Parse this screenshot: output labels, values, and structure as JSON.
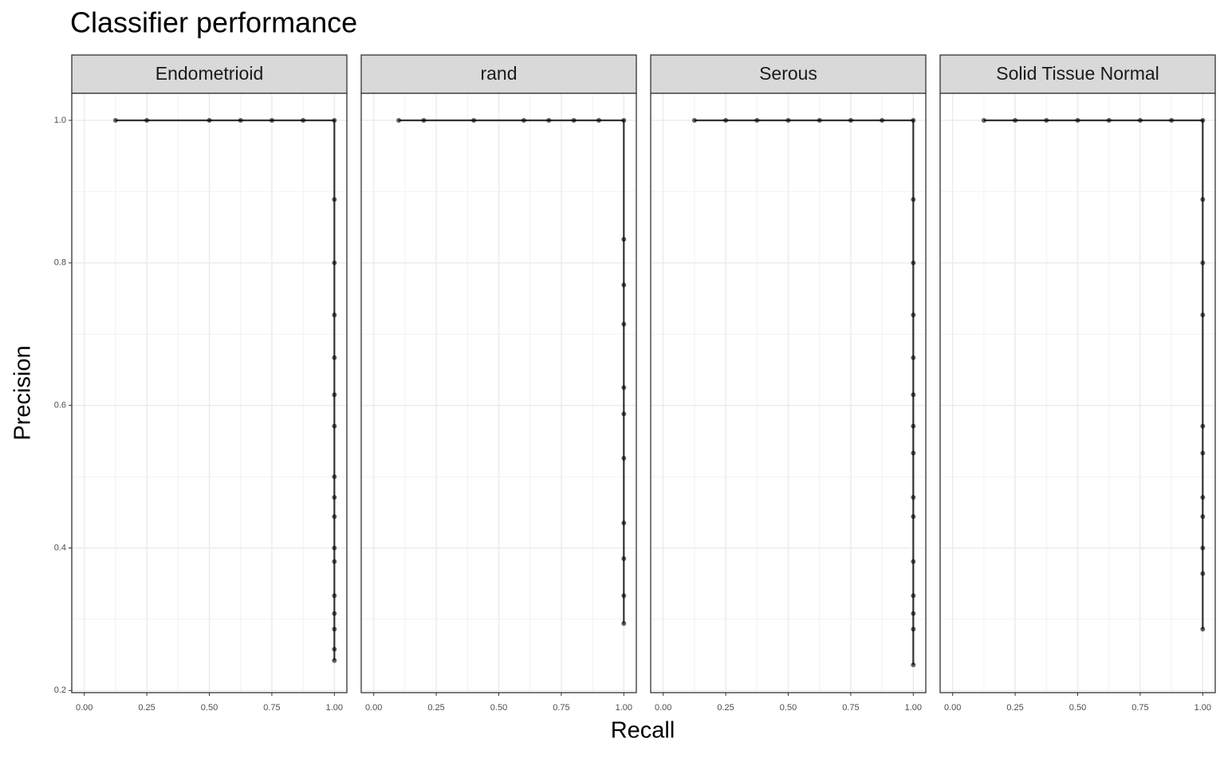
{
  "title": "Classifier performance",
  "x_label": "Recall",
  "y_label": "Precision",
  "chart_data": [
    {
      "type": "line",
      "title": "Endometrioid",
      "x": [
        0.125,
        0.25,
        0.5,
        0.625,
        0.75,
        0.875,
        1,
        1,
        1,
        1,
        1,
        1,
        1,
        1,
        1,
        1,
        1,
        1,
        1,
        1,
        1,
        1,
        1
      ],
      "y": [
        1,
        1,
        1,
        1,
        1,
        1,
        1,
        0.889,
        0.8,
        0.727,
        0.667,
        0.615,
        0.571,
        0.5,
        0.471,
        0.444,
        0.4,
        0.381,
        0.333,
        0.308,
        0.286,
        0.258,
        0.242
      ],
      "color": "#000000",
      "xlim": [
        -0.05,
        1.05
      ],
      "ylim": [
        0.197,
        1.038
      ],
      "xticks": [
        {
          "value": 0,
          "label": "0.00"
        },
        {
          "value": 0.25,
          "label": "0.25"
        },
        {
          "value": 0.5,
          "label": "0.50"
        },
        {
          "value": 0.75,
          "label": "0.75"
        },
        {
          "value": 1,
          "label": "1.00"
        }
      ],
      "yticks": [
        0.2,
        0.4,
        0.6,
        0.8,
        {
          "value": 1,
          "label": "1.0"
        }
      ],
      "grid": true
    },
    {
      "type": "line",
      "title": "rand",
      "x": [
        0.1,
        0.2,
        0.4,
        0.6,
        0.7,
        0.8,
        0.9,
        1,
        1,
        1,
        1,
        1,
        1,
        1,
        1,
        1,
        1,
        1
      ],
      "y": [
        1,
        1,
        1,
        1,
        1,
        1,
        1,
        1,
        0.833,
        0.769,
        0.714,
        0.625,
        0.588,
        0.526,
        0.435,
        0.385,
        0.333,
        0.294
      ],
      "color": "#000000",
      "xlim": [
        -0.05,
        1.05
      ],
      "ylim": [
        0.197,
        1.038
      ],
      "xticks": [
        {
          "value": 0,
          "label": "0.00"
        },
        {
          "value": 0.25,
          "label": "0.25"
        },
        {
          "value": 0.5,
          "label": "0.50"
        },
        {
          "value": 0.75,
          "label": "0.75"
        },
        {
          "value": 1,
          "label": "1.00"
        }
      ],
      "yticks": [
        0.2,
        0.4,
        0.6,
        0.8,
        {
          "value": 1,
          "label": "1.0"
        }
      ],
      "grid": true
    },
    {
      "type": "line",
      "title": "Serous",
      "x": [
        0.125,
        0.25,
        0.375,
        0.5,
        0.625,
        0.75,
        0.875,
        1,
        1,
        1,
        1,
        1,
        1,
        1,
        1,
        1,
        1,
        1,
        1,
        1,
        1,
        1
      ],
      "y": [
        1,
        1,
        1,
        1,
        1,
        1,
        1,
        1,
        0.889,
        0.8,
        0.727,
        0.667,
        0.615,
        0.571,
        0.533,
        0.471,
        0.444,
        0.381,
        0.333,
        0.308,
        0.286,
        0.236
      ],
      "color": "#000000",
      "xlim": [
        -0.05,
        1.05
      ],
      "ylim": [
        0.197,
        1.038
      ],
      "xticks": [
        {
          "value": 0,
          "label": "0.00"
        },
        {
          "value": 0.25,
          "label": "0.25"
        },
        {
          "value": 0.5,
          "label": "0.50"
        },
        {
          "value": 0.75,
          "label": "0.75"
        },
        {
          "value": 1,
          "label": "1.00"
        }
      ],
      "yticks": [
        0.2,
        0.4,
        0.6,
        0.8,
        {
          "value": 1,
          "label": "1.0"
        }
      ],
      "grid": true
    },
    {
      "type": "line",
      "title": "Solid Tissue Normal",
      "x": [
        0.125,
        0.25,
        0.375,
        0.5,
        0.625,
        0.75,
        0.875,
        1,
        1,
        1,
        1,
        1,
        1,
        1,
        1,
        1,
        1,
        1
      ],
      "y": [
        1,
        1,
        1,
        1,
        1,
        1,
        1,
        1,
        0.889,
        0.8,
        0.727,
        0.571,
        0.533,
        0.471,
        0.444,
        0.4,
        0.364,
        0.286
      ],
      "color": "#000000",
      "xlim": [
        -0.05,
        1.05
      ],
      "ylim": [
        0.197,
        1.038
      ],
      "xticks": [
        {
          "value": 0,
          "label": "0.00"
        },
        {
          "value": 0.25,
          "label": "0.25"
        },
        {
          "value": 0.5,
          "label": "0.50"
        },
        {
          "value": 0.75,
          "label": "0.75"
        },
        {
          "value": 1,
          "label": "1.00"
        }
      ],
      "yticks": [
        0.2,
        0.4,
        0.6,
        0.8,
        {
          "value": 1,
          "label": "1.0"
        }
      ],
      "grid": true
    }
  ]
}
